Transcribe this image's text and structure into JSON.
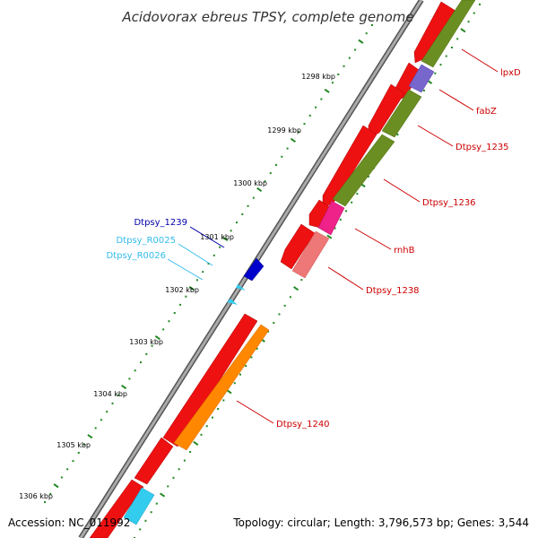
{
  "title": "Acidovorax ebreus TPSY, complete genome",
  "footer": {
    "accession": "Accession: NC_011992",
    "summary": "Topology: circular; Length: 3,796,573 bp; Genes: 3,544"
  },
  "scale_labels": [
    "1298 kbp",
    "1299 kbp",
    "1300 kbp",
    "1301 kbp",
    "1302 kbp",
    "1303 kbp",
    "1304 kbp",
    "1305 kbp",
    "1306 kbp"
  ],
  "gene_labels": [
    {
      "text": "lpxD",
      "color": "#cc0000"
    },
    {
      "text": "fabZ",
      "color": "#cc0000"
    },
    {
      "text": "Dtpsy_1235",
      "color": "#cc0000"
    },
    {
      "text": "Dtpsy_1236",
      "color": "#cc0000"
    },
    {
      "text": "rnhB",
      "color": "#cc0000"
    },
    {
      "text": "Dtpsy_1238",
      "color": "#cc0000"
    },
    {
      "text": "Dtpsy_1239",
      "color": "#0000aa"
    },
    {
      "text": "Dtpsy_R0025",
      "color": "#33bbee"
    },
    {
      "text": "Dtpsy_R0026",
      "color": "#33bbee"
    },
    {
      "text": "Dtpsy_1240",
      "color": "#cc0000"
    }
  ],
  "feature_colors": {
    "cds": "#ee1111",
    "olive": "#6b8e23",
    "purple": "#7766cc",
    "pink": "#ee2288",
    "salmon": "#ee7777",
    "blue": "#0000cc",
    "cyan": "#33ccee",
    "orange": "#ff8800",
    "backbone": "#888888",
    "scale": "#228822"
  }
}
